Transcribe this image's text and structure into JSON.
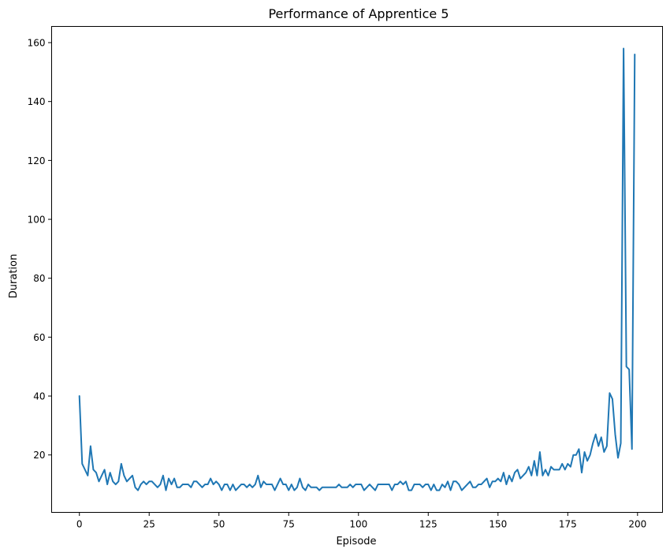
{
  "chart_data": {
    "type": "line",
    "title": "Performance of Apprentice 5",
    "xlabel": "Episode",
    "ylabel": "Duration",
    "xlim": [
      -9.95,
      208.95
    ],
    "ylim": [
      0.5,
      165.5
    ],
    "xticks": [
      0,
      25,
      50,
      75,
      100,
      125,
      150,
      175,
      200
    ],
    "yticks": [
      20,
      40,
      60,
      80,
      100,
      120,
      140,
      160
    ],
    "grid": false,
    "legend": "none",
    "series": [
      {
        "color": "#1f77b4",
        "x": [
          0,
          1,
          2,
          3,
          4,
          5,
          6,
          7,
          8,
          9,
          10,
          11,
          12,
          13,
          14,
          15,
          16,
          17,
          18,
          19,
          20,
          21,
          22,
          23,
          24,
          25,
          26,
          27,
          28,
          29,
          30,
          31,
          32,
          33,
          34,
          35,
          36,
          37,
          38,
          39,
          40,
          41,
          42,
          43,
          44,
          45,
          46,
          47,
          48,
          49,
          50,
          51,
          52,
          53,
          54,
          55,
          56,
          57,
          58,
          59,
          60,
          61,
          62,
          63,
          64,
          65,
          66,
          67,
          68,
          69,
          70,
          71,
          72,
          73,
          74,
          75,
          76,
          77,
          78,
          79,
          80,
          81,
          82,
          83,
          84,
          85,
          86,
          87,
          88,
          89,
          90,
          91,
          92,
          93,
          94,
          95,
          96,
          97,
          98,
          99,
          100,
          101,
          102,
          103,
          104,
          105,
          106,
          107,
          108,
          109,
          110,
          111,
          112,
          113,
          114,
          115,
          116,
          117,
          118,
          119,
          120,
          121,
          122,
          123,
          124,
          125,
          126,
          127,
          128,
          129,
          130,
          131,
          132,
          133,
          134,
          135,
          136,
          137,
          138,
          139,
          140,
          141,
          142,
          143,
          144,
          145,
          146,
          147,
          148,
          149,
          150,
          151,
          152,
          153,
          154,
          155,
          156,
          157,
          158,
          159,
          160,
          161,
          162,
          163,
          164,
          165,
          166,
          167,
          168,
          169,
          170,
          171,
          172,
          173,
          174,
          175,
          176,
          177,
          178,
          179,
          180,
          181,
          182,
          183,
          184,
          185,
          186,
          187,
          188,
          189,
          190,
          191,
          192,
          193,
          194,
          195,
          196,
          197,
          198,
          199
        ],
        "y": [
          40,
          17,
          15,
          13,
          23,
          15,
          14,
          11,
          13,
          15,
          10,
          14,
          11,
          10,
          11,
          17,
          13,
          11,
          12,
          13,
          9,
          8,
          10,
          11,
          10,
          11,
          11,
          10,
          9,
          10,
          13,
          8,
          12,
          10,
          12,
          9,
          9,
          10,
          10,
          10,
          9,
          11,
          11,
          10,
          9,
          10,
          10,
          12,
          10,
          11,
          10,
          8,
          10,
          10,
          8,
          10,
          8,
          9,
          10,
          10,
          9,
          10,
          9,
          10,
          13,
          9,
          11,
          10,
          10,
          10,
          8,
          10,
          12,
          10,
          10,
          8,
          10,
          8,
          9,
          12,
          9,
          8,
          10,
          9,
          9,
          9,
          8,
          9,
          9,
          9,
          9,
          9,
          9,
          10,
          9,
          9,
          9,
          10,
          9,
          10,
          10,
          10,
          8,
          9,
          10,
          9,
          8,
          10,
          10,
          10,
          10,
          10,
          8,
          10,
          10,
          11,
          10,
          11,
          8,
          8,
          10,
          10,
          10,
          9,
          10,
          10,
          8,
          10,
          8,
          8,
          10,
          9,
          11,
          8,
          11,
          11,
          10,
          8,
          9,
          10,
          11,
          9,
          9,
          10,
          10,
          11,
          12,
          9,
          11,
          11,
          12,
          11,
          14,
          10,
          13,
          11,
          14,
          15,
          12,
          13,
          14,
          16,
          13,
          18,
          13,
          21,
          13,
          15,
          13,
          16,
          15,
          15,
          15,
          17,
          15,
          17,
          16,
          20,
          20,
          22,
          14,
          21,
          18,
          20,
          24,
          27,
          23,
          26,
          21,
          23,
          41,
          39,
          27,
          19,
          24,
          158,
          50,
          49,
          22,
          156
        ]
      }
    ]
  }
}
